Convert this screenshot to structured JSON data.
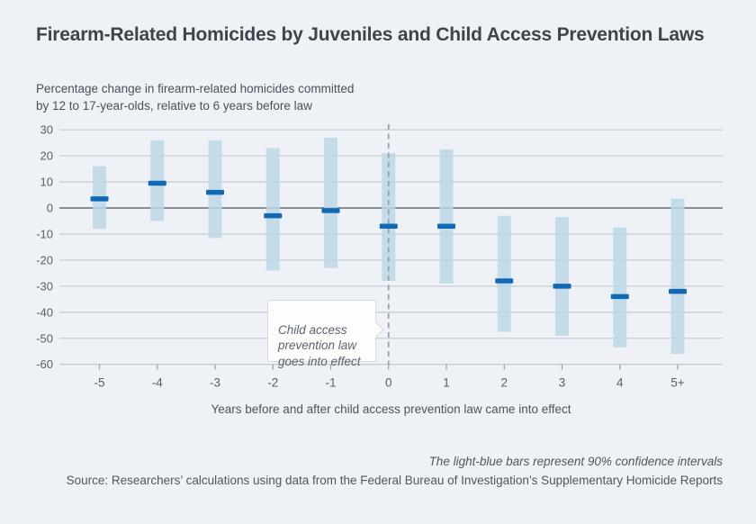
{
  "page": {
    "title": "Firearm-Related Homicides by Juveniles and Child Access Prevention Laws",
    "subtitle": "Percentage change in firearm-related homicides committed\nby 12 to 17-year-olds, relative to 6 years before law",
    "footnote": "The light-blue bars represent 90% confidence intervals",
    "source": "Source: Researchers’ calculations using data from the Federal Bureau of Investigation’s Supplementary Homicide Reports"
  },
  "annotation": {
    "text": "Child access\nprevention law\ngoes into effect"
  },
  "chart_data": {
    "type": "scatter",
    "subtype": "point-estimates-with-confidence-interval-bars",
    "title": "Firearm-Related Homicides by Juveniles and Child Access Prevention Laws",
    "xlabel": "Years before and after child access prevention law came into effect",
    "ylabel": "Percentage change in firearm-related homicides committed by 12 to 17-year-olds, relative to 6 years before law",
    "categories": [
      "-5",
      "-4",
      "-3",
      "-2",
      "-1",
      "0",
      "1",
      "2",
      "3",
      "4",
      "5+"
    ],
    "series": [
      {
        "name": "Point estimate (% change)",
        "values": [
          3.5,
          9.5,
          6,
          -3,
          -1,
          -7,
          -7,
          -28,
          -30,
          -34,
          -32
        ]
      },
      {
        "name": "90% CI upper bound",
        "values": [
          16,
          26,
          26,
          23,
          27,
          21,
          22.5,
          -3,
          -3.5,
          -7.5,
          3.5
        ]
      },
      {
        "name": "90% CI lower bound",
        "values": [
          -8,
          -5,
          -11.5,
          -24,
          -23,
          -28,
          -29,
          -47.5,
          -49,
          -53.5,
          -56
        ]
      }
    ],
    "ylim": [
      -60,
      30
    ],
    "yticks": [
      30,
      20,
      10,
      0,
      -10,
      -20,
      -30,
      -40,
      -50,
      -60
    ],
    "grid": "horizontal",
    "event_line_at_category": "0",
    "legend_position": "none",
    "colors": {
      "background": "#eef2f7",
      "ci_bar": "#c7dbe9",
      "point_marker": "#1168b3",
      "gridline": "#c9ced3",
      "zero_line": "#868e95",
      "dashed_event_line": "#9aa2a9",
      "axis_text": "#575e66"
    }
  }
}
